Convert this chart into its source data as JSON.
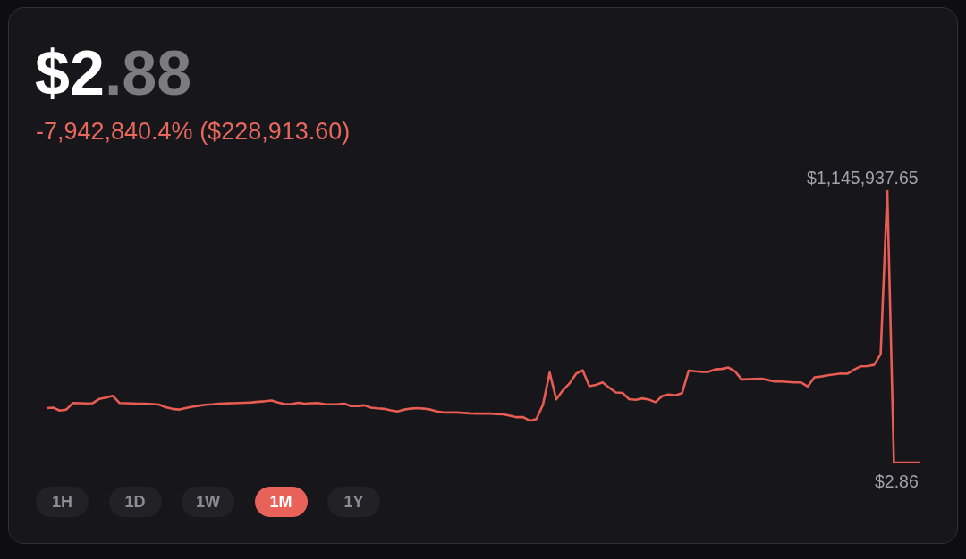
{
  "chart_data": {
    "type": "line",
    "title": "$2.88",
    "subtitle": "-7,942,840.4% ($228,913.60)",
    "line_style": "solid",
    "categories": [
      null,
      null,
      null,
      null,
      null,
      null,
      null,
      null,
      null,
      null,
      null,
      null,
      null,
      null,
      null,
      null,
      null,
      null,
      null,
      null,
      null,
      null,
      null,
      null,
      null,
      null,
      null,
      null,
      null,
      null,
      null,
      null,
      null,
      null,
      null,
      null,
      null,
      null,
      null,
      null,
      null,
      null,
      null,
      null,
      null,
      null,
      null,
      null,
      null,
      null,
      null,
      null,
      null,
      null,
      null,
      null,
      null,
      null,
      null,
      null,
      null,
      null,
      null,
      null,
      null,
      null,
      null,
      null,
      null,
      null,
      null,
      null,
      null,
      null,
      null,
      null,
      null,
      null,
      null,
      null,
      null,
      null,
      null,
      null,
      null,
      null,
      null,
      null,
      null,
      null,
      null,
      null,
      null,
      null,
      null,
      null,
      null,
      null,
      null,
      null,
      null,
      null,
      null,
      null,
      null,
      null,
      null,
      null,
      null,
      null,
      null,
      null,
      null,
      null,
      null,
      null,
      null,
      null,
      null,
      null,
      null,
      null,
      null,
      null,
      null,
      null,
      null,
      null,
      null,
      null,
      null,
      null,
      null
    ],
    "series": [
      {
        "color": "#e85c53",
        "values": [
          229000,
          231000,
          219000,
          223000,
          251000,
          250000,
          249000,
          250000,
          268000,
          273000,
          281000,
          251000,
          250000,
          249000,
          248000,
          248000,
          246000,
          244000,
          233000,
          226000,
          223000,
          229000,
          235000,
          239000,
          243000,
          245000,
          248000,
          249000,
          250000,
          251000,
          252000,
          253000,
          256000,
          258000,
          261000,
          253000,
          246000,
          246000,
          252000,
          248000,
          250000,
          251000,
          246000,
          245000,
          246000,
          248000,
          238000,
          238000,
          241000,
          231000,
          228000,
          226000,
          220000,
          215000,
          223000,
          227000,
          229000,
          227000,
          223000,
          215000,
          211000,
          211000,
          211000,
          209000,
          207000,
          206000,
          206000,
          206000,
          204000,
          203000,
          197000,
          191000,
          191000,
          176000,
          183000,
          244000,
          379000,
          266000,
          304000,
          333000,
          374000,
          388000,
          321000,
          327000,
          337000,
          315000,
          295000,
          293000,
          267000,
          264000,
          270000,
          265000,
          254000,
          280000,
          286000,
          283000,
          292000,
          387000,
          384000,
          382000,
          382000,
          392000,
          394000,
          400000,
          384000,
          350000,
          351000,
          352000,
          353000,
          347000,
          341000,
          341000,
          339000,
          337000,
          337000,
          320000,
          359000,
          362000,
          367000,
          371000,
          375000,
          374000,
          391000,
          405000,
          406000,
          411000,
          456000,
          1145937.65,
          2.86,
          2.86,
          2.86,
          2.86,
          2.86
        ],
        "value_labels": [
          null,
          null,
          null,
          null,
          null,
          null,
          null,
          null,
          null,
          null,
          null,
          null,
          null,
          null,
          null,
          null,
          null,
          null,
          null,
          null,
          null,
          null,
          null,
          null,
          null,
          null,
          null,
          null,
          null,
          null,
          null,
          null,
          null,
          null,
          null,
          null,
          null,
          null,
          null,
          null,
          null,
          null,
          null,
          null,
          null,
          null,
          null,
          null,
          null,
          null,
          null,
          null,
          null,
          null,
          null,
          null,
          null,
          null,
          null,
          null,
          null,
          null,
          null,
          null,
          null,
          null,
          null,
          null,
          null,
          null,
          null,
          null,
          null,
          null,
          null,
          null,
          null,
          null,
          null,
          null,
          null,
          null,
          null,
          null,
          null,
          null,
          null,
          null,
          null,
          null,
          null,
          null,
          null,
          null,
          null,
          null,
          null,
          null,
          null,
          null,
          null,
          null,
          null,
          null,
          null,
          null,
          null,
          null,
          null,
          null,
          null,
          null,
          null,
          null,
          null,
          null,
          null,
          null,
          null,
          null,
          null,
          null,
          null,
          null,
          null,
          null,
          null,
          "$1,145,937.65",
          null,
          null,
          null,
          null,
          "$2.86"
        ]
      }
    ],
    "annotations": [
      "1H",
      "1D",
      "1W",
      "1M",
      "1Y"
    ]
  }
}
